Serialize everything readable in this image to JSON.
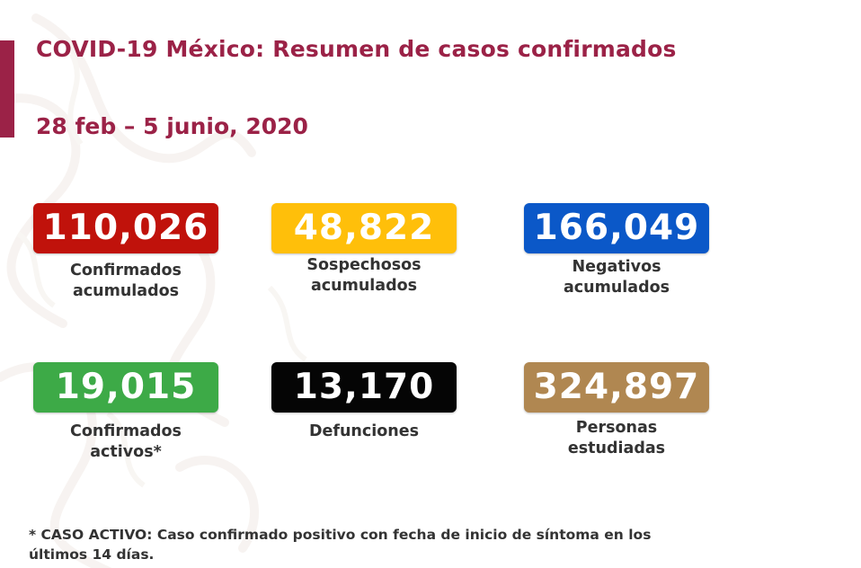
{
  "header": {
    "title": "COVID-19 México: Resumen de casos confirmados",
    "date_range": "28 feb – 5 junio, 2020"
  },
  "stats": [
    {
      "value": "110,026",
      "label": "Confirmados\nacumulados",
      "color": "#c0120b"
    },
    {
      "value": "48,822",
      "label": "Sospechosos\nacumulados",
      "color": "#ffbf0a"
    },
    {
      "value": "166,049",
      "label": "Negativos\nacumulados",
      "color": "#0b58c8"
    },
    {
      "value": "19,015",
      "label": "Confirmados\nactivos*",
      "color": "#3daa47"
    },
    {
      "value": "13,170",
      "label": "Defunciones",
      "color": "#050505"
    },
    {
      "value": "324,897",
      "label": "Personas\nestudiadas",
      "color": "#b08751"
    }
  ],
  "footnote": "* CASO ACTIVO: Caso confirmado positivo con fecha de inicio de síntoma en los últimos 14 días.",
  "colors": {
    "brand": "#9b2247",
    "text": "#333333"
  }
}
